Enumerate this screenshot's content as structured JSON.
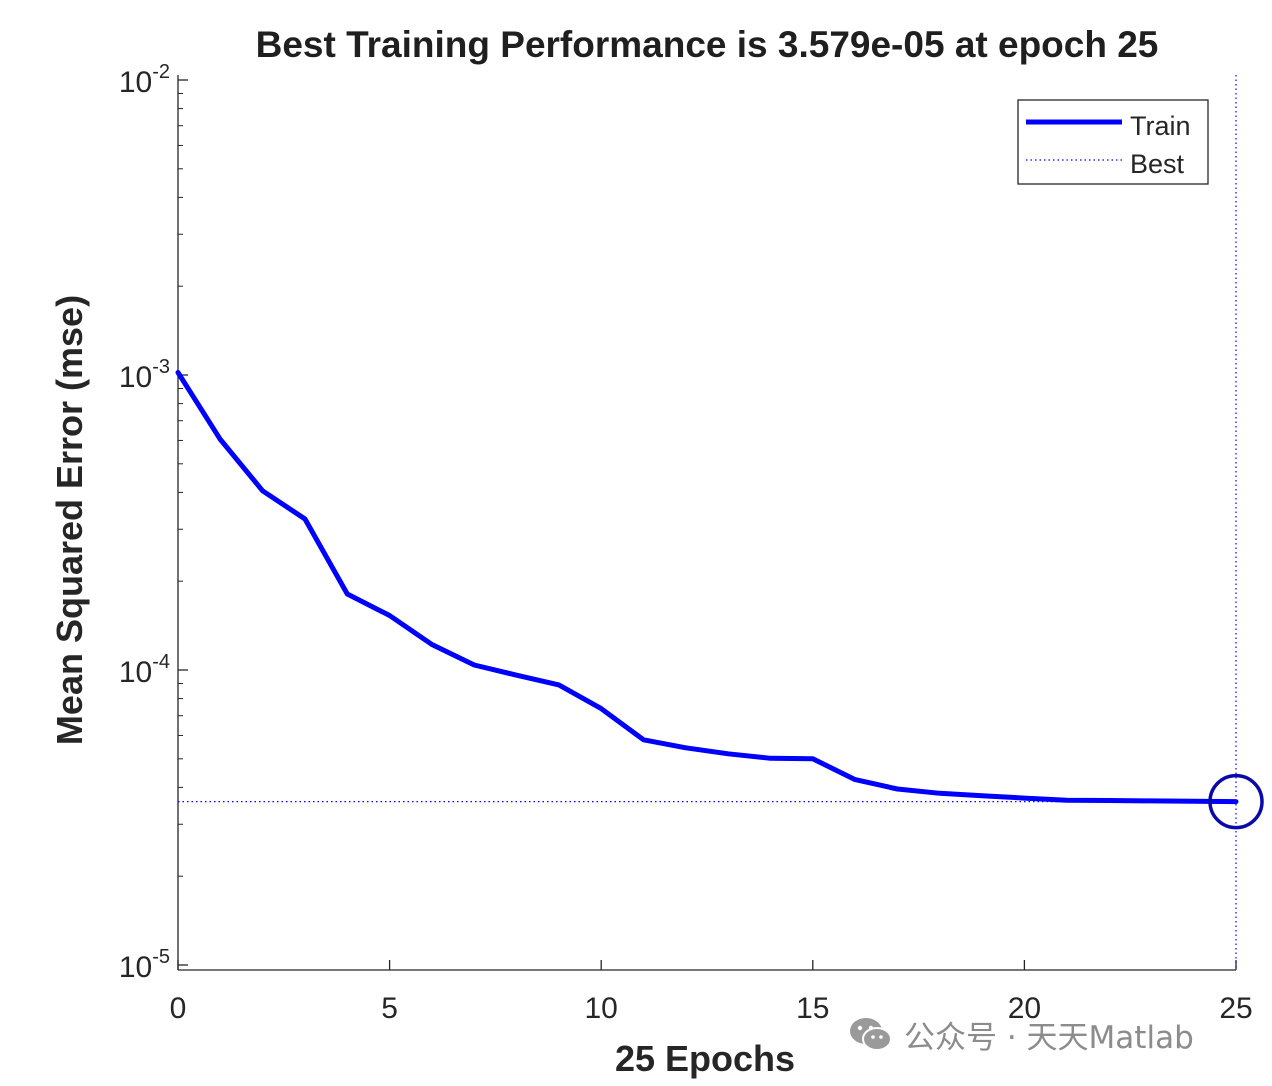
{
  "chart_data": {
    "type": "line",
    "title": "Best Training Performance is 3.579e-05 at epoch 25",
    "xlabel": "25 Epochs",
    "ylabel": "Mean Squared Error  (mse)",
    "xlim": [
      0,
      25
    ],
    "ylim": [
      1e-05,
      0.01
    ],
    "yscale": "log",
    "grid": false,
    "legend_position": "top-right",
    "x_ticks": [
      0,
      5,
      10,
      15,
      20,
      25
    ],
    "y_ticks": [
      {
        "base": "10",
        "exp": "-2",
        "value": 0.01
      },
      {
        "base": "10",
        "exp": "-3",
        "value": 0.001
      },
      {
        "base": "10",
        "exp": "-4",
        "value": 0.0001
      },
      {
        "base": "10",
        "exp": "-5",
        "value": 1e-05
      }
    ],
    "series": [
      {
        "name": "Train",
        "color": "#0000ff",
        "style": "solid",
        "x": [
          0,
          1,
          2,
          3,
          4,
          5,
          6,
          7,
          8,
          9,
          10,
          11,
          12,
          13,
          14,
          15,
          16,
          17,
          18,
          19,
          20,
          21,
          22,
          23,
          24,
          25
        ],
        "y": [
          0.00102,
          0.000605,
          0.000405,
          0.000325,
          0.000181,
          0.000153,
          0.000122,
          0.000104,
          9.6e-05,
          8.9e-05,
          7.4e-05,
          5.8e-05,
          5.45e-05,
          5.2e-05,
          5.02e-05,
          5e-05,
          4.25e-05,
          3.95e-05,
          3.82e-05,
          3.75e-05,
          3.68e-05,
          3.62e-05,
          3.61e-05,
          3.6e-05,
          3.59e-05,
          3.579e-05
        ]
      },
      {
        "name": "Best",
        "color": "#0000ff",
        "style": "dotted",
        "horizontal_y": 3.579e-05,
        "vertical_x": 25
      }
    ],
    "best_marker": {
      "x": 25,
      "y": 3.579e-05
    }
  },
  "watermark": {
    "text": "公众号 · 天天Matlab",
    "icon": "wechat-icon"
  }
}
